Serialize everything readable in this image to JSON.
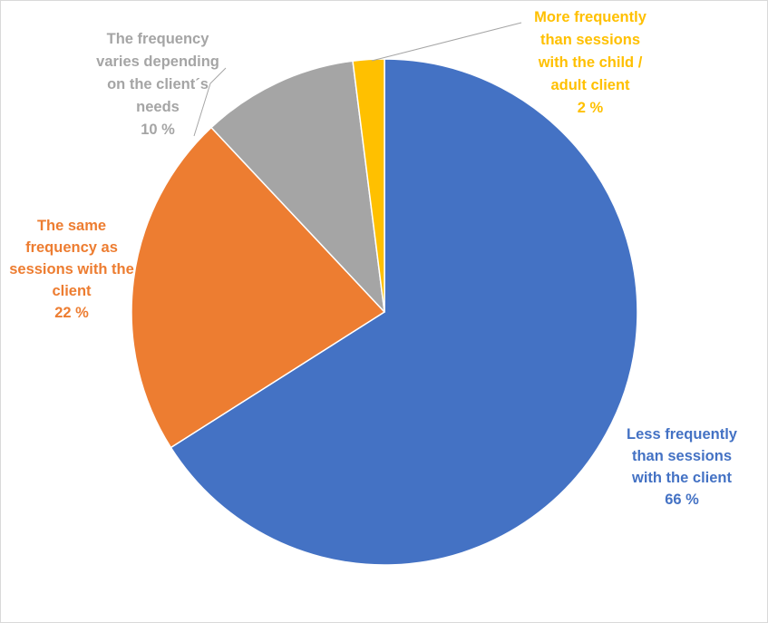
{
  "chart_data": {
    "type": "pie",
    "title": "",
    "slices": [
      {
        "label_lines": [
          "Less frequently",
          "than sessions",
          "with the client"
        ],
        "pct_text": "66 %",
        "value": 66,
        "color": "#4472C4"
      },
      {
        "label_lines": [
          "The same",
          "frequency as",
          "sessions with the",
          "client"
        ],
        "pct_text": "22 %",
        "value": 22,
        "color": "#ED7D31"
      },
      {
        "label_lines": [
          "The frequency",
          "varies depending",
          "on the client´s",
          "needs"
        ],
        "pct_text": "10 %",
        "value": 10,
        "color": "#A5A5A5"
      },
      {
        "label_lines": [
          "More frequently",
          "than sessions",
          "with the child /",
          "adult client"
        ],
        "pct_text": "2 %",
        "value": 2,
        "color": "#FFC000"
      }
    ],
    "start_angle_deg": 0,
    "direction": "clockwise",
    "legend": "none"
  }
}
